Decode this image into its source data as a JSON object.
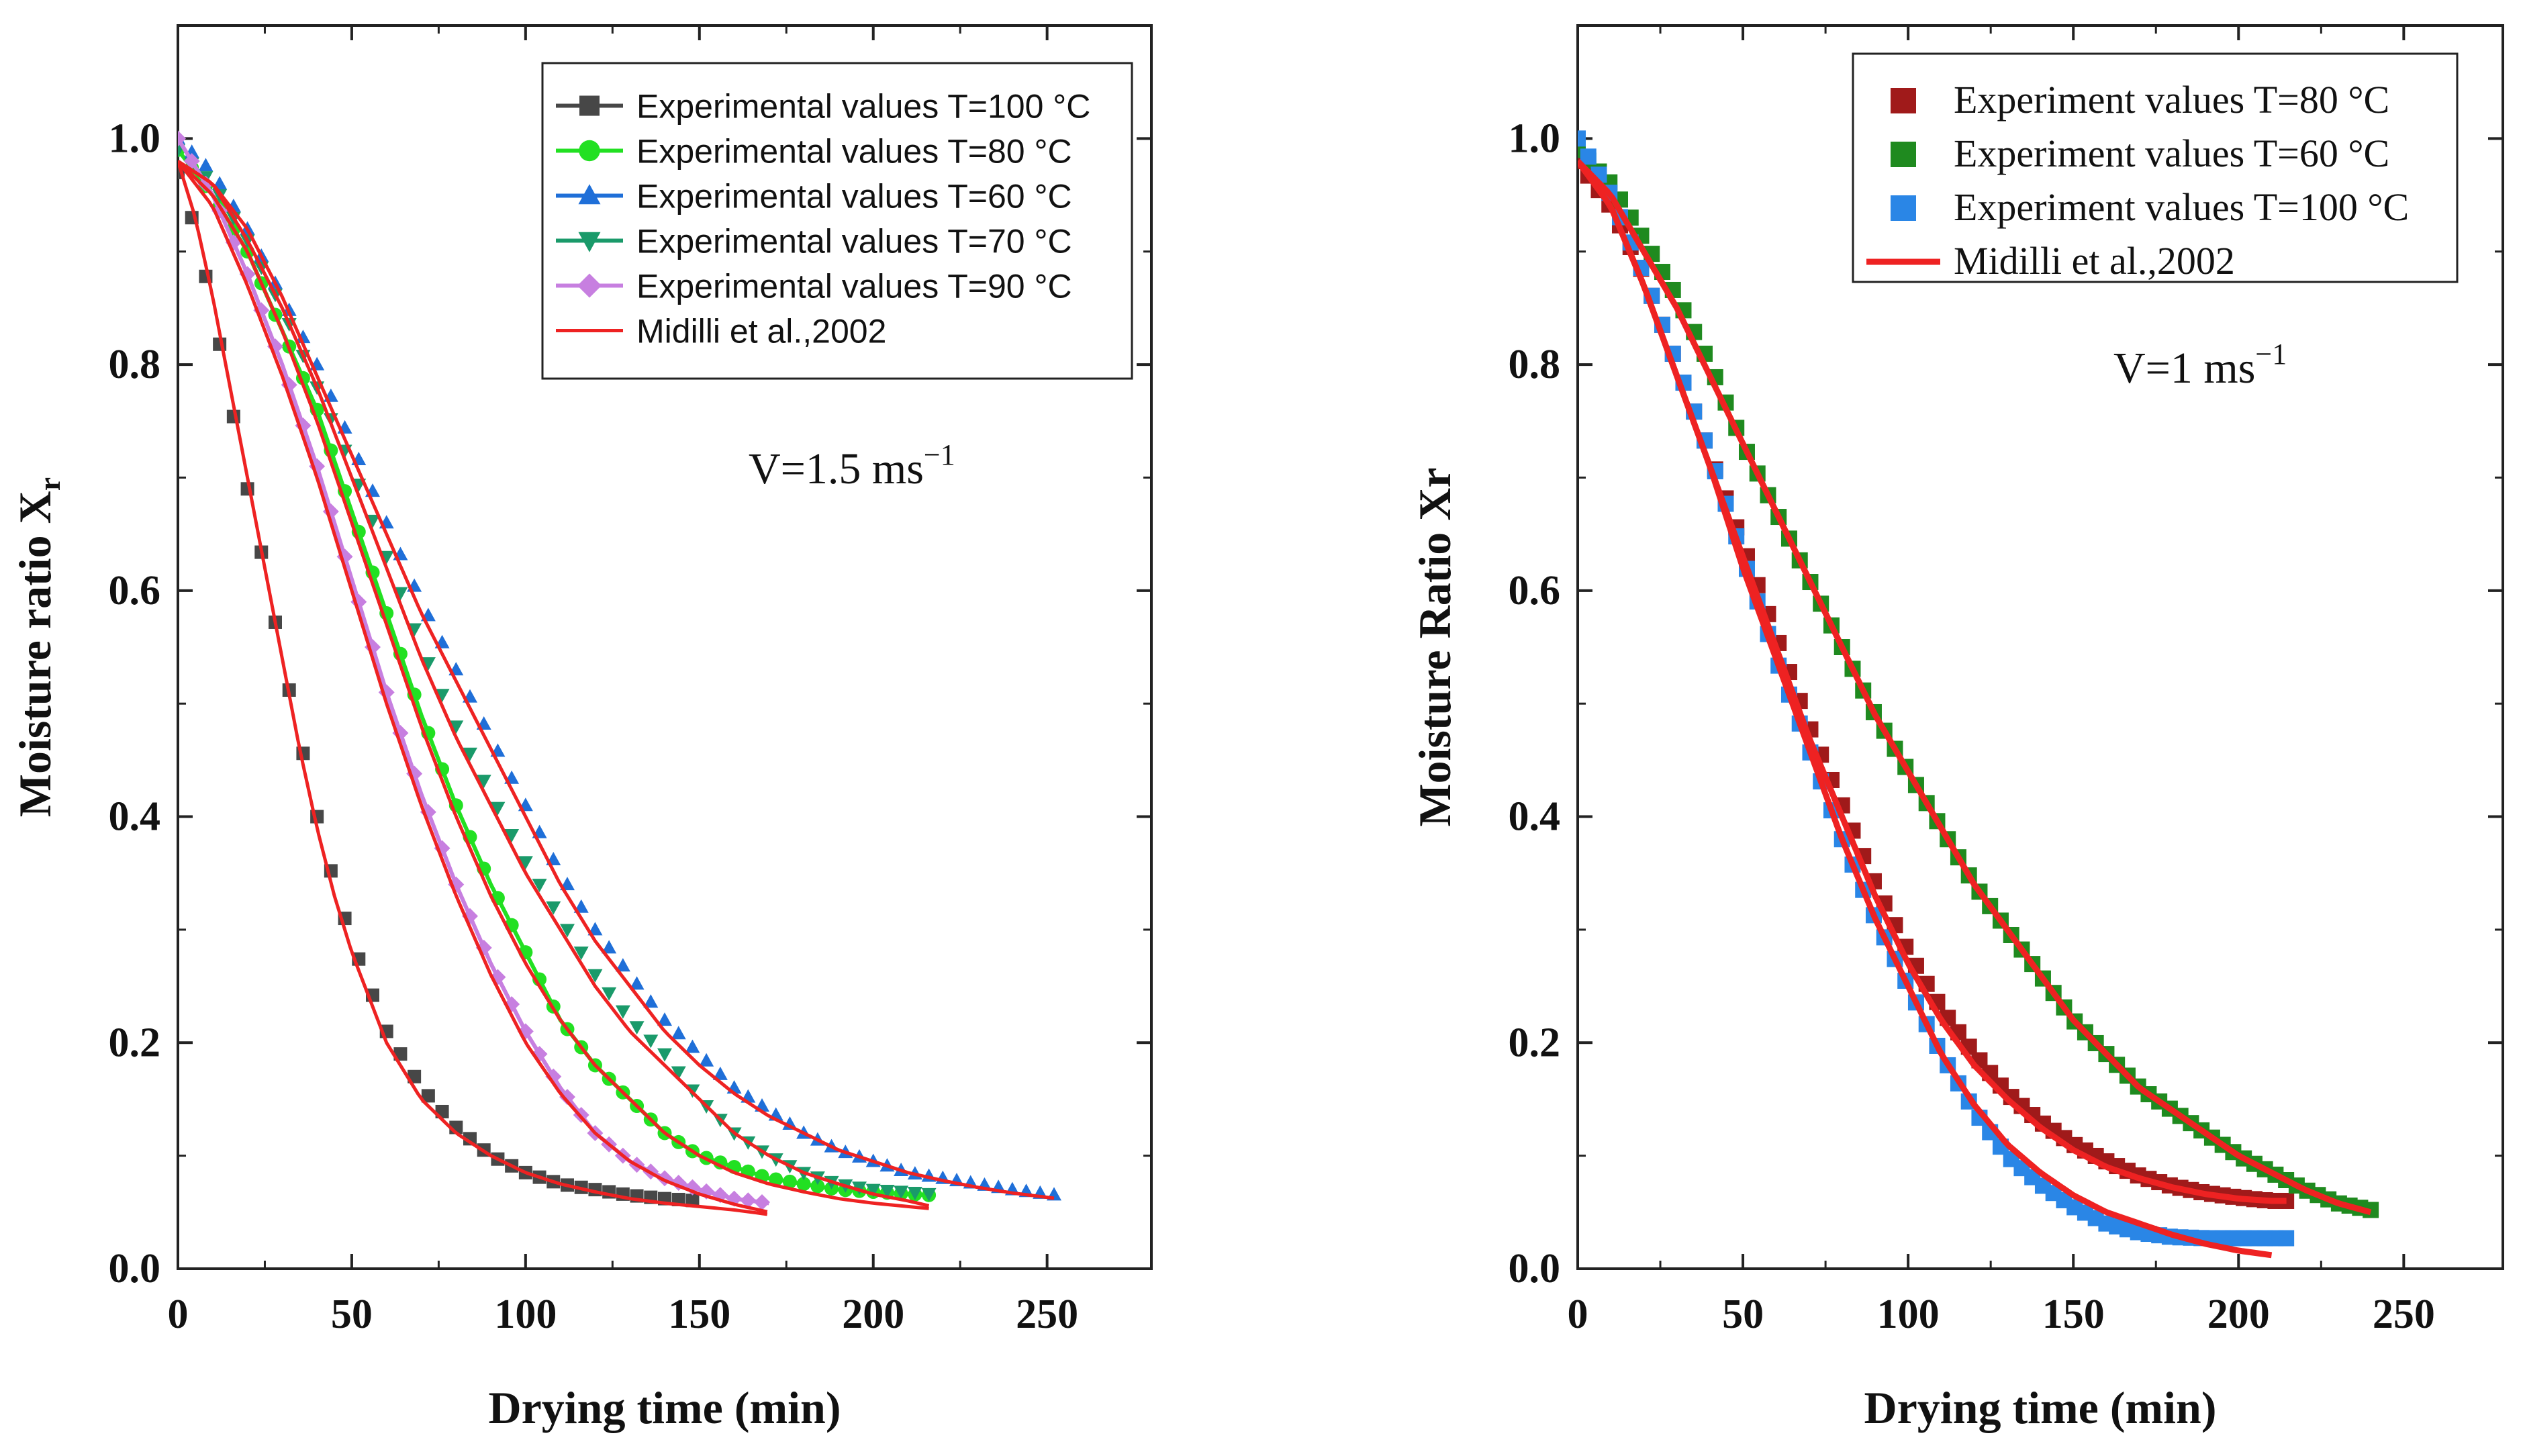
{
  "chart_data": [
    {
      "type": "scatter",
      "title": "",
      "xlabel": "Drying time (min)",
      "ylabel_text": "Moisture ratio X",
      "ylabel_sub": "r",
      "xlim": [
        0,
        280
      ],
      "ylim": [
        0,
        1.1
      ],
      "xticks": [
        "0",
        "50",
        "100",
        "150",
        "200",
        "250"
      ],
      "yticks": [
        "0.0",
        "0.2",
        "0.4",
        "0.6",
        "0.8",
        "1.0"
      ],
      "annotation": {
        "base": "V=1.5 ms",
        "sup": "−1"
      },
      "legend_position": "top-right",
      "series": [
        {
          "name": "Experimental values T=100 °C",
          "marker": "square",
          "color": "#474747",
          "x": [
            0,
            5,
            10,
            15,
            20,
            25,
            30,
            35,
            40,
            45,
            50,
            55,
            60,
            70,
            80,
            90,
            100,
            110,
            120,
            130,
            140,
            150
          ],
          "y": [
            0.97,
            0.92,
            0.85,
            0.77,
            0.69,
            0.62,
            0.54,
            0.47,
            0.4,
            0.34,
            0.29,
            0.25,
            0.21,
            0.16,
            0.125,
            0.1,
            0.085,
            0.075,
            0.07,
            0.065,
            0.062,
            0.06
          ]
        },
        {
          "name": "Experimental values T=80 °C",
          "marker": "circle",
          "color": "#22e022",
          "x": [
            0,
            10,
            20,
            30,
            40,
            50,
            60,
            70,
            80,
            90,
            100,
            110,
            120,
            130,
            140,
            150,
            160,
            170,
            180,
            190,
            200,
            210,
            217
          ],
          "y": [
            0.99,
            0.95,
            0.9,
            0.83,
            0.76,
            0.67,
            0.58,
            0.49,
            0.41,
            0.34,
            0.28,
            0.22,
            0.18,
            0.15,
            0.12,
            0.1,
            0.09,
            0.08,
            0.075,
            0.07,
            0.068,
            0.066,
            0.065
          ]
        },
        {
          "name": "Experimental values T=60 °C",
          "marker": "triangle-up",
          "color": "#1f6fd8",
          "x": [
            0,
            10,
            20,
            30,
            40,
            50,
            60,
            70,
            80,
            90,
            100,
            110,
            120,
            130,
            140,
            150,
            160,
            170,
            180,
            190,
            200,
            210,
            220,
            230,
            240,
            253
          ],
          "y": [
            1.0,
            0.97,
            0.92,
            0.86,
            0.8,
            0.73,
            0.66,
            0.59,
            0.53,
            0.47,
            0.41,
            0.35,
            0.3,
            0.26,
            0.22,
            0.19,
            0.16,
            0.14,
            0.12,
            0.105,
            0.095,
            0.085,
            0.08,
            0.075,
            0.07,
            0.065
          ]
        },
        {
          "name": "Experimental values T=70 °C",
          "marker": "triangle-down",
          "color": "#1a9a6a",
          "x": [
            0,
            10,
            20,
            30,
            40,
            50,
            60,
            70,
            80,
            90,
            100,
            110,
            120,
            130,
            140,
            150,
            160,
            170,
            180,
            190,
            200,
            210,
            217
          ],
          "y": [
            0.99,
            0.96,
            0.91,
            0.85,
            0.78,
            0.71,
            0.63,
            0.55,
            0.48,
            0.42,
            0.36,
            0.31,
            0.26,
            0.22,
            0.19,
            0.15,
            0.12,
            0.1,
            0.085,
            0.075,
            0.07,
            0.068,
            0.066
          ]
        },
        {
          "name": "Experimental values T=90 °C",
          "marker": "diamond",
          "color": "#c77fe0",
          "x": [
            0,
            10,
            20,
            30,
            40,
            50,
            60,
            70,
            80,
            90,
            100,
            110,
            120,
            130,
            140,
            150,
            160,
            170
          ],
          "y": [
            1.0,
            0.95,
            0.88,
            0.8,
            0.71,
            0.61,
            0.51,
            0.42,
            0.34,
            0.27,
            0.21,
            0.16,
            0.12,
            0.095,
            0.08,
            0.07,
            0.062,
            0.058
          ]
        },
        {
          "name": "Midilli et al.,2002",
          "marker": "line",
          "color": "#ee2222",
          "curves": [
            {
              "x": [
                0,
                5,
                10,
                15,
                20,
                25,
                30,
                35,
                40,
                45,
                50,
                55,
                60,
                70,
                80,
                90,
                100,
                110,
                120,
                130,
                140,
                150,
                160,
                170
              ],
              "y": [
                0.98,
                0.93,
                0.86,
                0.78,
                0.7,
                0.62,
                0.54,
                0.46,
                0.39,
                0.33,
                0.28,
                0.24,
                0.2,
                0.15,
                0.12,
                0.1,
                0.085,
                0.075,
                0.068,
                0.062,
                0.058,
                0.055,
                0.052,
                0.048
              ]
            },
            {
              "x": [
                0,
                10,
                20,
                30,
                40,
                50,
                60,
                70,
                80,
                90,
                100,
                110,
                120,
                130,
                140,
                150,
                160,
                170,
                180,
                190,
                200,
                210,
                217
              ],
              "y": [
                0.98,
                0.95,
                0.9,
                0.83,
                0.75,
                0.66,
                0.57,
                0.48,
                0.4,
                0.33,
                0.27,
                0.22,
                0.18,
                0.15,
                0.12,
                0.1,
                0.085,
                0.075,
                0.068,
                0.062,
                0.058,
                0.055,
                0.053
              ]
            },
            {
              "x": [
                0,
                10,
                20,
                30,
                40,
                50,
                60,
                70,
                80,
                90,
                100,
                110,
                120,
                130,
                140,
                150,
                160,
                170,
                180,
                190,
                200,
                210,
                220,
                230,
                240,
                253
              ],
              "y": [
                0.98,
                0.96,
                0.92,
                0.86,
                0.79,
                0.72,
                0.65,
                0.58,
                0.52,
                0.46,
                0.4,
                0.34,
                0.29,
                0.25,
                0.21,
                0.18,
                0.155,
                0.135,
                0.12,
                0.105,
                0.095,
                0.085,
                0.078,
                0.072,
                0.067,
                0.062
              ]
            },
            {
              "x": [
                0,
                10,
                20,
                30,
                40,
                50,
                60,
                70,
                80,
                90,
                100,
                110,
                120,
                130,
                140,
                150,
                160,
                170,
                180,
                190,
                200,
                210,
                217
              ],
              "y": [
                0.98,
                0.96,
                0.91,
                0.85,
                0.78,
                0.7,
                0.62,
                0.54,
                0.47,
                0.41,
                0.35,
                0.3,
                0.25,
                0.21,
                0.18,
                0.15,
                0.12,
                0.1,
                0.085,
                0.075,
                0.066,
                0.06,
                0.055
              ]
            },
            {
              "x": [
                0,
                10,
                20,
                30,
                40,
                50,
                60,
                70,
                80,
                90,
                100,
                110,
                120,
                130,
                140,
                150,
                160,
                170
              ],
              "y": [
                0.98,
                0.94,
                0.87,
                0.79,
                0.7,
                0.6,
                0.5,
                0.41,
                0.33,
                0.26,
                0.2,
                0.155,
                0.12,
                0.095,
                0.078,
                0.066,
                0.057,
                0.05
              ]
            }
          ]
        }
      ]
    },
    {
      "type": "scatter",
      "title": "",
      "xlabel": "Drying time (min)",
      "ylabel_text": "Moisture Ratio Xr",
      "ylabel_sub": "",
      "xlim": [
        0,
        280
      ],
      "ylim": [
        0,
        1.1
      ],
      "xticks": [
        "0",
        "50",
        "100",
        "150",
        "200",
        "250"
      ],
      "yticks": [
        "0.0",
        "0.2",
        "0.4",
        "0.6",
        "0.8",
        "1.0"
      ],
      "annotation": {
        "base": "V=1 ms",
        "sup": "−1"
      },
      "legend_position": "top-right",
      "series": [
        {
          "name": "Experiment values T=80 °C",
          "marker": "square",
          "color": "#a01a1a",
          "x": [
            0,
            10,
            20,
            30,
            40,
            50,
            60,
            70,
            80,
            90,
            100,
            110,
            120,
            130,
            140,
            150,
            160,
            170,
            180,
            190,
            200,
            210,
            215
          ],
          "y": [
            0.98,
            0.94,
            0.88,
            0.8,
            0.72,
            0.64,
            0.56,
            0.48,
            0.41,
            0.34,
            0.28,
            0.23,
            0.19,
            0.155,
            0.13,
            0.11,
            0.095,
            0.082,
            0.073,
            0.067,
            0.063,
            0.06,
            0.06
          ]
        },
        {
          "name": "Experiment values T=60 °C",
          "marker": "square",
          "color": "#1f8a1f",
          "x": [
            0,
            10,
            20,
            30,
            40,
            50,
            60,
            70,
            80,
            90,
            100,
            110,
            120,
            130,
            140,
            150,
            160,
            170,
            180,
            190,
            200,
            210,
            220,
            230,
            240
          ],
          "y": [
            0.99,
            0.96,
            0.91,
            0.86,
            0.8,
            0.73,
            0.67,
            0.61,
            0.55,
            0.49,
            0.44,
            0.39,
            0.34,
            0.3,
            0.26,
            0.22,
            0.19,
            0.16,
            0.14,
            0.12,
            0.1,
            0.085,
            0.07,
            0.058,
            0.052
          ]
        },
        {
          "name": "Experiment values T=100 °C",
          "marker": "square",
          "color": "#2a86e6",
          "x": [
            0,
            10,
            20,
            30,
            40,
            50,
            60,
            70,
            80,
            90,
            100,
            110,
            120,
            130,
            140,
            150,
            160,
            170,
            180,
            190,
            200,
            210,
            215
          ],
          "y": [
            1.0,
            0.95,
            0.88,
            0.8,
            0.72,
            0.63,
            0.54,
            0.46,
            0.38,
            0.31,
            0.25,
            0.19,
            0.14,
            0.1,
            0.075,
            0.055,
            0.04,
            0.032,
            0.028,
            0.027,
            0.027,
            0.027,
            0.027
          ]
        },
        {
          "name": "Midilli et al.,2002",
          "marker": "line",
          "color": "#ee2222",
          "curves": [
            {
              "x": [
                0,
                10,
                20,
                30,
                40,
                50,
                60,
                70,
                80,
                90,
                100,
                110,
                120,
                130,
                140,
                150,
                160,
                170,
                180,
                190,
                200,
                210,
                215
              ],
              "y": [
                0.98,
                0.94,
                0.87,
                0.79,
                0.71,
                0.63,
                0.55,
                0.47,
                0.4,
                0.33,
                0.27,
                0.22,
                0.18,
                0.15,
                0.125,
                0.105,
                0.09,
                0.08,
                0.072,
                0.066,
                0.062,
                0.06,
                0.06
              ]
            },
            {
              "x": [
                0,
                10,
                20,
                30,
                40,
                50,
                60,
                70,
                80,
                90,
                100,
                110,
                120,
                130,
                140,
                150,
                160,
                170,
                180,
                190,
                200,
                210,
                220,
                230,
                240
              ],
              "y": [
                0.98,
                0.95,
                0.9,
                0.85,
                0.79,
                0.73,
                0.67,
                0.61,
                0.55,
                0.49,
                0.44,
                0.39,
                0.34,
                0.3,
                0.26,
                0.22,
                0.19,
                0.16,
                0.14,
                0.12,
                0.1,
                0.085,
                0.07,
                0.058,
                0.05
              ]
            },
            {
              "x": [
                0,
                10,
                20,
                30,
                40,
                50,
                60,
                70,
                80,
                90,
                100,
                110,
                120,
                130,
                140,
                150,
                160,
                170,
                180,
                190,
                200,
                210
              ],
              "y": [
                0.98,
                0.94,
                0.87,
                0.79,
                0.71,
                0.62,
                0.54,
                0.46,
                0.38,
                0.31,
                0.25,
                0.19,
                0.145,
                0.11,
                0.085,
                0.065,
                0.05,
                0.04,
                0.03,
                0.022,
                0.016,
                0.012
              ]
            }
          ]
        }
      ]
    }
  ]
}
